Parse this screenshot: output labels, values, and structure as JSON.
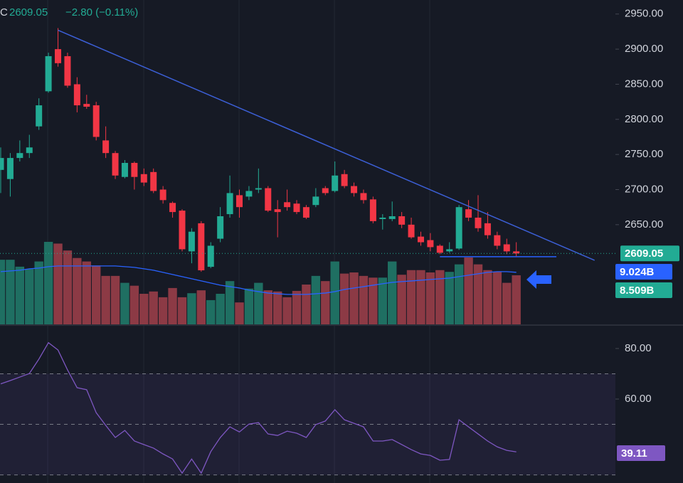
{
  "header": {
    "symbol_tail": "C",
    "price": "2609.05",
    "change": "−2.80 (−0.11%)"
  },
  "chart_data": [
    {
      "type": "candlestick",
      "open": [
        2728,
        2715,
        2745,
        2752,
        2790,
        2840,
        2900,
        2890,
        2850,
        2822,
        2820,
        2770,
        2752,
        2718,
        2738,
        2722,
        2725,
        2700,
        2681,
        2670,
        2612,
        2652,
        2590,
        2630,
        2665,
        2692,
        2690,
        2700,
        2702,
        2672,
        2682,
        2680,
        2675,
        2678,
        2702,
        2698,
        2722,
        2705,
        2695,
        2686,
        2658,
        2658,
        2662,
        2650,
        2633,
        2628,
        2620,
        2612,
        2616,
        2672,
        2660,
        2652,
        2635,
        2622,
        2612
      ],
      "high": [
        2760,
        2752,
        2770,
        2778,
        2830,
        2895,
        2930,
        2895,
        2860,
        2835,
        2825,
        2790,
        2755,
        2742,
        2740,
        2730,
        2730,
        2705,
        2683,
        2672,
        2645,
        2655,
        2625,
        2675,
        2720,
        2700,
        2705,
        2730,
        2705,
        2685,
        2700,
        2685,
        2678,
        2702,
        2705,
        2740,
        2728,
        2710,
        2700,
        2690,
        2665,
        2683,
        2668,
        2660,
        2640,
        2638,
        2622,
        2625,
        2678,
        2685,
        2692,
        2668,
        2640,
        2630,
        2625
      ],
      "low": [
        2695,
        2690,
        2740,
        2745,
        2785,
        2838,
        2875,
        2845,
        2810,
        2815,
        2770,
        2745,
        2715,
        2716,
        2700,
        2705,
        2695,
        2680,
        2660,
        2612,
        2595,
        2583,
        2588,
        2625,
        2660,
        2660,
        2685,
        2695,
        2668,
        2632,
        2670,
        2665,
        2658,
        2675,
        2692,
        2696,
        2702,
        2690,
        2680,
        2652,
        2643,
        2655,
        2645,
        2630,
        2620,
        2612,
        2608,
        2610,
        2614,
        2655,
        2640,
        2630,
        2615,
        2608,
        2605
      ],
      "close": [
        2745,
        2745,
        2752,
        2760,
        2820,
        2890,
        2880,
        2848,
        2820,
        2818,
        2775,
        2752,
        2720,
        2738,
        2718,
        2710,
        2698,
        2685,
        2668,
        2615,
        2640,
        2585,
        2620,
        2662,
        2695,
        2675,
        2698,
        2702,
        2670,
        2668,
        2675,
        2668,
        2660,
        2690,
        2695,
        2720,
        2705,
        2695,
        2685,
        2655,
        2660,
        2662,
        2650,
        2632,
        2625,
        2618,
        2610,
        2615,
        2675,
        2660,
        2645,
        2635,
        2620,
        2612,
        2609.05
      ],
      "up_color": "#22ab94",
      "down_color": "#f23645",
      "ylim": [
        2508,
        2970
      ],
      "yticks": [
        {
          "value": 2950,
          "label": "2950.00"
        },
        {
          "value": 2900,
          "label": "2900.00"
        },
        {
          "value": 2850,
          "label": "2850.00"
        },
        {
          "value": 2800,
          "label": "2800.00"
        },
        {
          "value": 2750,
          "label": "2750.00"
        },
        {
          "value": 2700,
          "label": "2700.00"
        },
        {
          "value": 2650,
          "label": "2650.00"
        }
      ],
      "trendlines": [
        {
          "x": [
            6,
            62.2
          ],
          "y": [
            2927,
            2599.3
          ],
          "color": "#3c5fd6"
        },
        {
          "x": [
            46,
            58.2
          ],
          "y": [
            2604.4,
            2604.4
          ],
          "color": "#2962ff"
        }
      ]
    },
    {
      "type": "volume",
      "values": [
        11.2,
        11.2,
        10,
        9.6,
        10.9,
        14.3,
        14,
        12.8,
        11.5,
        10.9,
        10.2,
        8.4,
        8.4,
        7.2,
        6.7,
        5.3,
        5.7,
        4.7,
        6.3,
        4.7,
        5.4,
        5.9,
        4.2,
        5.3,
        7.5,
        3.8,
        6.2,
        7.2,
        5.9,
        5.7,
        4.7,
        5.8,
        6.9,
        8.4,
        7.5,
        10.9,
        8.8,
        9,
        8.4,
        8.1,
        8.1,
        10.9,
        8.6,
        9.4,
        9.4,
        9,
        9.4,
        9.1,
        10.4,
        11.6,
        10.4,
        9.4,
        9.1,
        7.2,
        8.509
      ],
      "value_labels": [
        null,
        null,
        null,
        null,
        null,
        null,
        null,
        null,
        null,
        null,
        null,
        null,
        null,
        null,
        null,
        null,
        null,
        null,
        null,
        null,
        null,
        null,
        null,
        null,
        null,
        null,
        null,
        null,
        null,
        null,
        null,
        null,
        null,
        null,
        null,
        null,
        null,
        null,
        null,
        null,
        null,
        null,
        null,
        null,
        null,
        null,
        null,
        null,
        null,
        null,
        null,
        null,
        null,
        null,
        "8.509B"
      ],
      "up_color": "#1f6f62",
      "down_color": "#8c3a45",
      "ylim": [
        0,
        14.3
      ],
      "ma": {
        "color": "#2962ff",
        "values": [
          9.14,
          9.26,
          9.38,
          9.63,
          9.75,
          10,
          10.12,
          10.12,
          10.12,
          10.12,
          10.12,
          10.12,
          10.12,
          10,
          9.88,
          9.63,
          9.38,
          9.01,
          8.64,
          8.27,
          7.9,
          7.53,
          7.16,
          6.79,
          6.54,
          6.3,
          5.93,
          5.68,
          5.43,
          5.31,
          5.19,
          5.19,
          5.19,
          5.31,
          5.43,
          5.68,
          6.05,
          6.3,
          6.54,
          6.79,
          7.04,
          7.28,
          7.41,
          7.53,
          7.65,
          7.78,
          7.9,
          8.02,
          8.27,
          8.52,
          8.77,
          9.01,
          9.14,
          9.14,
          9.024
        ],
        "value_labels": [
          null,
          null,
          null,
          null,
          null,
          null,
          null,
          null,
          null,
          null,
          null,
          null,
          null,
          null,
          null,
          null,
          null,
          null,
          null,
          null,
          null,
          null,
          null,
          null,
          null,
          null,
          null,
          null,
          null,
          null,
          null,
          null,
          null,
          null,
          null,
          null,
          null,
          null,
          null,
          null,
          null,
          null,
          null,
          null,
          null,
          null,
          null,
          null,
          null,
          null,
          null,
          null,
          null,
          null,
          "9.024B"
        ]
      }
    },
    {
      "type": "rsi",
      "color": "#7e57c2",
      "values": [
        66,
        67.3,
        68.7,
        70.1,
        75.8,
        82.3,
        79.4,
        71.5,
        64.5,
        63.7,
        54.6,
        49.6,
        44.8,
        47.6,
        43.4,
        42,
        40.6,
        38.3,
        36.3,
        30.7,
        36.3,
        30.7,
        39.2,
        44.8,
        49,
        47,
        50.1,
        50.7,
        46.2,
        45.6,
        47.3,
        46.5,
        44.8,
        49.9,
        51.3,
        55.8,
        51.8,
        50.4,
        49,
        43.4,
        43.4,
        44,
        42,
        40,
        38.3,
        37.7,
        35.8,
        36.1,
        51.8,
        49,
        46.2,
        43.4,
        41.1,
        39.7,
        39.11
      ],
      "ylim": [
        26.8,
        85.6
      ],
      "yticks": [
        {
          "value": 80,
          "label": "80.00"
        },
        {
          "value": 60,
          "label": "60.00"
        }
      ],
      "bands": [
        70,
        50,
        30
      ]
    }
  ]
}
